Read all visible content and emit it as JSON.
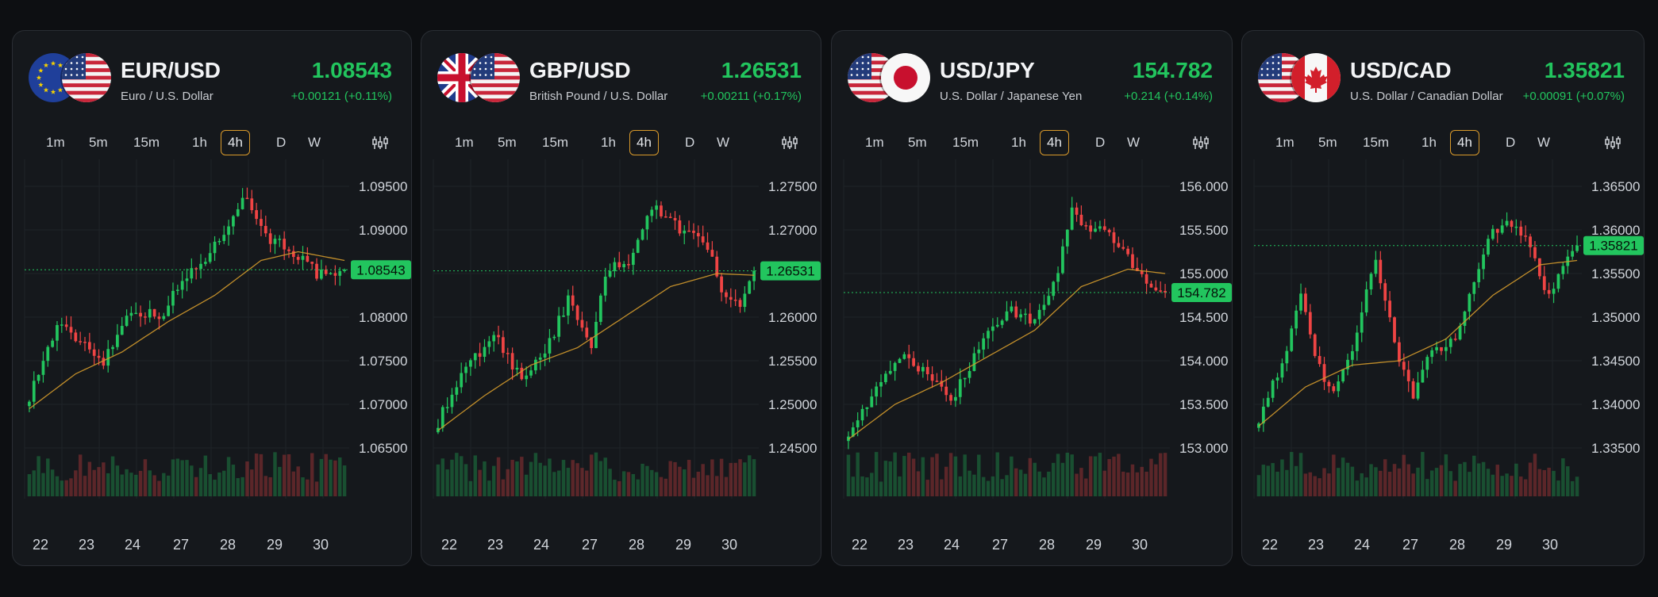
{
  "timeframes": [
    "1m",
    "5m",
    "15m",
    "1h",
    "4h",
    "D",
    "W"
  ],
  "selected_timeframe": "4h",
  "x_labels": [
    "22",
    "23",
    "24",
    "27",
    "28",
    "29",
    "30"
  ],
  "colors": {
    "up": "#22c55e",
    "down": "#ef4444",
    "ma": "#d39a2c",
    "accent": "#d99a2b"
  },
  "cards": [
    {
      "pair": "EUR/USD",
      "description": "Euro / U.S. Dollar",
      "price": "1.08543",
      "change": "+0.00121 (+0.11%)",
      "flags": [
        "eu-flag",
        "us-flag"
      ],
      "y_ticks": [
        "1.09500",
        "1.09000",
        "1.08500",
        "1.08000",
        "1.07500",
        "1.07000",
        "1.06500"
      ],
      "current_label": "1.08543",
      "chart_data": {
        "type": "candlestick",
        "y_ticks": [
          1.095,
          1.09,
          1.085,
          1.08,
          1.075,
          1.07,
          1.065
        ],
        "current": 1.08543,
        "anchors": [
          [
            0,
            1.071
          ],
          [
            6,
            1.079
          ],
          [
            12,
            1.077
          ],
          [
            16,
            1.075
          ],
          [
            22,
            1.081
          ],
          [
            28,
            1.08
          ],
          [
            33,
            1.084
          ],
          [
            40,
            1.088
          ],
          [
            46,
            1.094
          ],
          [
            52,
            1.089
          ],
          [
            56,
            1.088
          ],
          [
            62,
            1.085
          ],
          [
            66,
            1.0843
          ],
          [
            68,
            1.0854
          ]
        ],
        "ma_anchors": [
          [
            0,
            1.0695
          ],
          [
            10,
            1.0735
          ],
          [
            20,
            1.076
          ],
          [
            30,
            1.0795
          ],
          [
            40,
            1.0825
          ],
          [
            50,
            1.0865
          ],
          [
            58,
            1.0875
          ],
          [
            68,
            1.0865
          ]
        ]
      }
    },
    {
      "pair": "GBP/USD",
      "description": "British Pound / U.S. Dollar",
      "price": "1.26531",
      "change": "+0.00211 (+0.17%)",
      "flags": [
        "uk-flag",
        "us-flag"
      ],
      "y_ticks": [
        "1.27500",
        "1.27000",
        "1.26500",
        "1.26000",
        "1.25500",
        "1.25000",
        "1.24500"
      ],
      "current_label": "1.26531",
      "chart_data": {
        "type": "candlestick",
        "y_ticks": [
          1.275,
          1.27,
          1.265,
          1.26,
          1.255,
          1.25,
          1.245
        ],
        "current": 1.26531,
        "anchors": [
          [
            0,
            1.248
          ],
          [
            6,
            1.254
          ],
          [
            12,
            1.258
          ],
          [
            18,
            1.253
          ],
          [
            24,
            1.257
          ],
          [
            28,
            1.262
          ],
          [
            33,
            1.256
          ],
          [
            36,
            1.265
          ],
          [
            42,
            1.267
          ],
          [
            46,
            1.273
          ],
          [
            52,
            1.27
          ],
          [
            58,
            1.268
          ],
          [
            62,
            1.262
          ],
          [
            65,
            1.261
          ],
          [
            68,
            1.2653
          ]
        ],
        "ma_anchors": [
          [
            0,
            1.247
          ],
          [
            10,
            1.251
          ],
          [
            20,
            1.2545
          ],
          [
            30,
            1.2565
          ],
          [
            40,
            1.26
          ],
          [
            50,
            1.2635
          ],
          [
            60,
            1.265
          ],
          [
            68,
            1.2648
          ]
        ]
      }
    },
    {
      "pair": "USD/JPY",
      "description": "U.S. Dollar / Japanese Yen",
      "price": "154.782",
      "change": "+0.214 (+0.14%)",
      "flags": [
        "us-flag",
        "jp-flag"
      ],
      "y_ticks": [
        "156.000",
        "155.500",
        "155.000",
        "154.500",
        "154.000",
        "153.500",
        "153.000"
      ],
      "current_label": "154.782",
      "chart_data": {
        "type": "candlestick",
        "y_ticks": [
          156,
          155.5,
          155,
          154.5,
          154,
          153.5,
          153
        ],
        "current": 154.782,
        "anchors": [
          [
            0,
            153.2
          ],
          [
            6,
            153.65
          ],
          [
            12,
            154.1
          ],
          [
            18,
            153.75
          ],
          [
            22,
            153.55
          ],
          [
            28,
            154.15
          ],
          [
            34,
            154.6
          ],
          [
            40,
            154.45
          ],
          [
            44,
            154.85
          ],
          [
            48,
            155.7
          ],
          [
            52,
            155.5
          ],
          [
            56,
            155.45
          ],
          [
            62,
            155.05
          ],
          [
            66,
            154.8
          ],
          [
            68,
            154.78
          ]
        ],
        "ma_anchors": [
          [
            0,
            153.1
          ],
          [
            10,
            153.5
          ],
          [
            20,
            153.75
          ],
          [
            30,
            154.05
          ],
          [
            40,
            154.35
          ],
          [
            50,
            154.85
          ],
          [
            60,
            155.05
          ],
          [
            68,
            155.0
          ]
        ]
      }
    },
    {
      "pair": "USD/CAD",
      "description": "U.S. Dollar / Canadian Dollar",
      "price": "1.35821",
      "change": "+0.00091 (+0.07%)",
      "flags": [
        "us-flag",
        "ca-flag"
      ],
      "y_ticks": [
        "1.36500",
        "1.36000",
        "1.35500",
        "1.35000",
        "1.34500",
        "1.34000",
        "1.33500"
      ],
      "current_label": "1.35821",
      "chart_data": {
        "type": "candlestick",
        "y_ticks": [
          1.365,
          1.36,
          1.355,
          1.35,
          1.345,
          1.34,
          1.335
        ],
        "current": 1.35821,
        "anchors": [
          [
            0,
            1.3385
          ],
          [
            5,
            1.345
          ],
          [
            9,
            1.352
          ],
          [
            13,
            1.344
          ],
          [
            16,
            1.341
          ],
          [
            20,
            1.346
          ],
          [
            25,
            1.357
          ],
          [
            29,
            1.347
          ],
          [
            33,
            1.341
          ],
          [
            37,
            1.346
          ],
          [
            42,
            1.348
          ],
          [
            46,
            1.354
          ],
          [
            50,
            1.36
          ],
          [
            54,
            1.361
          ],
          [
            58,
            1.358
          ],
          [
            62,
            1.352
          ],
          [
            65,
            1.3565
          ],
          [
            68,
            1.3582
          ]
        ],
        "ma_anchors": [
          [
            0,
            1.3375
          ],
          [
            10,
            1.342
          ],
          [
            20,
            1.3445
          ],
          [
            30,
            1.345
          ],
          [
            40,
            1.3475
          ],
          [
            50,
            1.3525
          ],
          [
            60,
            1.356
          ],
          [
            68,
            1.3565
          ]
        ]
      }
    }
  ]
}
